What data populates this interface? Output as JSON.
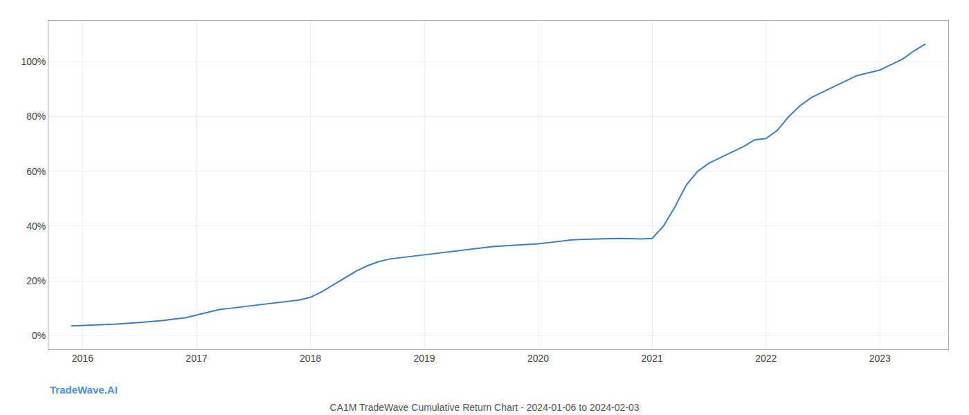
{
  "chart_data": {
    "type": "line",
    "title": "CA1M TradeWave Cumulative Return Chart - 2024-01-06 to 2024-02-03",
    "x": [
      2015.9,
      2016.1,
      2016.3,
      2016.5,
      2016.7,
      2016.9,
      2017.1,
      2017.2,
      2017.3,
      2017.4,
      2017.5,
      2017.6,
      2017.7,
      2017.8,
      2017.9,
      2018.0,
      2018.1,
      2018.2,
      2018.3,
      2018.4,
      2018.5,
      2018.6,
      2018.7,
      2018.8,
      2018.9,
      2019.0,
      2019.1,
      2019.2,
      2019.3,
      2019.4,
      2019.5,
      2019.6,
      2019.7,
      2019.8,
      2019.9,
      2020.0,
      2020.1,
      2020.2,
      2020.3,
      2020.4,
      2020.5,
      2020.6,
      2020.7,
      2020.8,
      2020.9,
      2021.0,
      2021.1,
      2021.2,
      2021.3,
      2021.4,
      2021.5,
      2021.6,
      2021.7,
      2021.8,
      2021.9,
      2022.0,
      2022.1,
      2022.2,
      2022.3,
      2022.4,
      2022.5,
      2022.6,
      2022.7,
      2022.8,
      2022.9,
      2023.0,
      2023.1,
      2023.2,
      2023.3,
      2023.4
    ],
    "values": [
      3.5,
      3.8,
      4.2,
      4.8,
      5.5,
      6.5,
      8.5,
      9.5,
      10.0,
      10.5,
      11.0,
      11.5,
      12.0,
      12.5,
      13.0,
      14.0,
      16.0,
      18.5,
      21.0,
      23.5,
      25.5,
      27.0,
      28.0,
      28.5,
      29.0,
      29.5,
      30.0,
      30.5,
      31.0,
      31.5,
      32.0,
      32.5,
      32.8,
      33.0,
      33.2,
      33.5,
      34.0,
      34.5,
      35.0,
      35.2,
      35.3,
      35.5,
      35.5,
      35.4,
      35.3,
      35.5,
      40.0,
      47.0,
      55.0,
      60.0,
      63.0,
      65.0,
      67.0,
      69.0,
      71.5,
      72.0,
      75.0,
      80.0,
      84.0,
      87.0,
      89.0,
      91.0,
      93.0,
      95.0,
      96.0,
      97.0,
      99.0,
      101.0,
      104.0,
      106.5
    ],
    "color": "#3a7ebf",
    "xlim": [
      2015.7,
      2023.6
    ],
    "xticks": [
      2016,
      2017,
      2018,
      2019,
      2020,
      2021,
      2022,
      2023
    ],
    "ylim": [
      -5,
      115
    ],
    "yticks": [
      {
        "value": 0,
        "label": "0%"
      },
      {
        "value": 20,
        "label": "20%"
      },
      {
        "value": 40,
        "label": "40%"
      },
      {
        "value": 60,
        "label": "60%"
      },
      {
        "value": 80,
        "label": "80%"
      },
      {
        "value": 100,
        "label": "100%"
      }
    ],
    "grid": true,
    "annotations": [
      "TradeWave.AI"
    ]
  }
}
